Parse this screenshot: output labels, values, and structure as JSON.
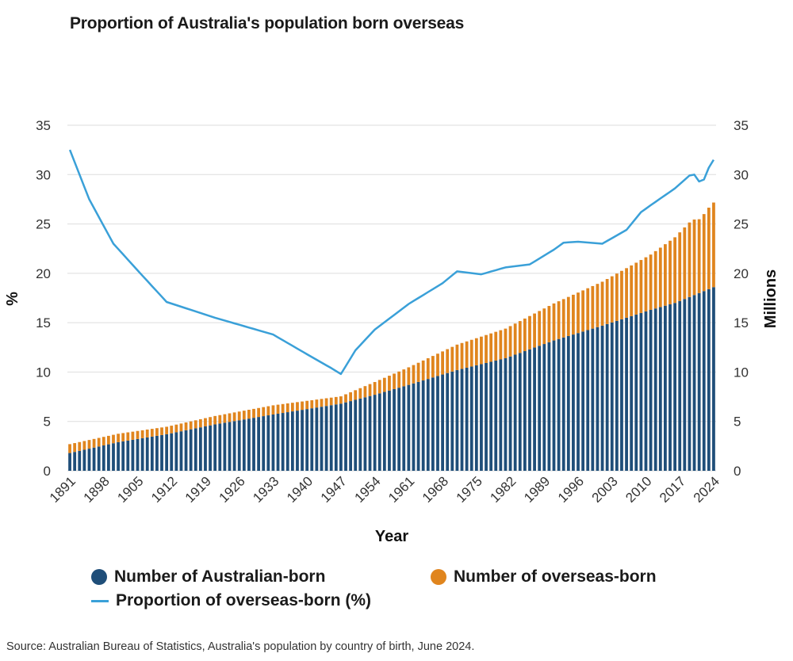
{
  "title": "Proportion of Australia's population born overseas",
  "source": "Source: Australian Bureau of Statistics, Australia's population by country of birth, June 2024.",
  "chart_data": {
    "type": "bar+line",
    "title": "Proportion of Australia's population born overseas",
    "xlabel": "Year",
    "ylabel_left": "%",
    "ylabel_right": "Millions",
    "ylim": [
      0,
      35
    ],
    "yticks": [
      0,
      5,
      10,
      15,
      20,
      25,
      30,
      35
    ],
    "xtick_labels": [
      "1891",
      "1898",
      "1905",
      "1912",
      "1919",
      "1926",
      "1933",
      "1940",
      "1947",
      "1954",
      "1961",
      "1968",
      "1975",
      "1982",
      "1989",
      "1996",
      "2003",
      "2010",
      "2017",
      "2024"
    ],
    "year_start": 1891,
    "year_end": 2024,
    "grid": true,
    "legend": {
      "australian_born": "Number of Australian-born",
      "overseas_born": "Number of overseas-born",
      "proportion": "Proportion of overseas-born (%)"
    },
    "colors": {
      "australian_born": "#1f4e79",
      "overseas_born": "#e0851e",
      "proportion": "#3aa0d8"
    },
    "series": [
      {
        "name": "Number of Australian-born",
        "axis": "right",
        "unit": "millions",
        "anchors": [
          [
            1891,
            1.8
          ],
          [
            1901,
            2.9
          ],
          [
            1911,
            3.7
          ],
          [
            1921,
            4.7
          ],
          [
            1933,
            5.7
          ],
          [
            1947,
            6.8
          ],
          [
            1954,
            7.7
          ],
          [
            1961,
            8.7
          ],
          [
            1971,
            10.2
          ],
          [
            1981,
            11.4
          ],
          [
            1991,
            13.2
          ],
          [
            2001,
            14.7
          ],
          [
            2011,
            16.3
          ],
          [
            2016,
            17.0
          ],
          [
            2021,
            18.0
          ],
          [
            2024,
            18.6
          ]
        ]
      },
      {
        "name": "Number of overseas-born",
        "axis": "right",
        "unit": "millions",
        "anchors": [
          [
            1891,
            0.9
          ],
          [
            1901,
            0.85
          ],
          [
            1911,
            0.76
          ],
          [
            1921,
            0.85
          ],
          [
            1933,
            0.93
          ],
          [
            1947,
            0.74
          ],
          [
            1954,
            1.29
          ],
          [
            1961,
            1.78
          ],
          [
            1971,
            2.58
          ],
          [
            1981,
            3.0
          ],
          [
            1991,
            3.75
          ],
          [
            2001,
            4.45
          ],
          [
            2011,
            5.6
          ],
          [
            2016,
            6.65
          ],
          [
            2019,
            7.55
          ],
          [
            2020,
            7.65
          ],
          [
            2021,
            7.48
          ],
          [
            2022,
            7.8
          ],
          [
            2023,
            8.25
          ],
          [
            2024,
            8.57
          ]
        ]
      },
      {
        "name": "Proportion of overseas-born (%)",
        "axis": "left",
        "unit": "%",
        "anchors": [
          [
            1891,
            32.5
          ],
          [
            1895,
            27.5
          ],
          [
            1900,
            23.0
          ],
          [
            1905,
            20.3
          ],
          [
            1911,
            17.1
          ],
          [
            1921,
            15.5
          ],
          [
            1933,
            13.8
          ],
          [
            1940,
            11.8
          ],
          [
            1945,
            10.4
          ],
          [
            1947,
            9.8
          ],
          [
            1950,
            12.2
          ],
          [
            1954,
            14.3
          ],
          [
            1961,
            16.9
          ],
          [
            1968,
            19.0
          ],
          [
            1971,
            20.2
          ],
          [
            1976,
            19.9
          ],
          [
            1981,
            20.6
          ],
          [
            1986,
            20.9
          ],
          [
            1991,
            22.4
          ],
          [
            1993,
            23.1
          ],
          [
            1996,
            23.2
          ],
          [
            2001,
            23.0
          ],
          [
            2006,
            24.4
          ],
          [
            2009,
            26.2
          ],
          [
            2011,
            26.9
          ],
          [
            2016,
            28.6
          ],
          [
            2019,
            29.9
          ],
          [
            2020,
            30.0
          ],
          [
            2021,
            29.3
          ],
          [
            2022,
            29.5
          ],
          [
            2023,
            30.7
          ],
          [
            2024,
            31.5
          ]
        ]
      }
    ]
  }
}
